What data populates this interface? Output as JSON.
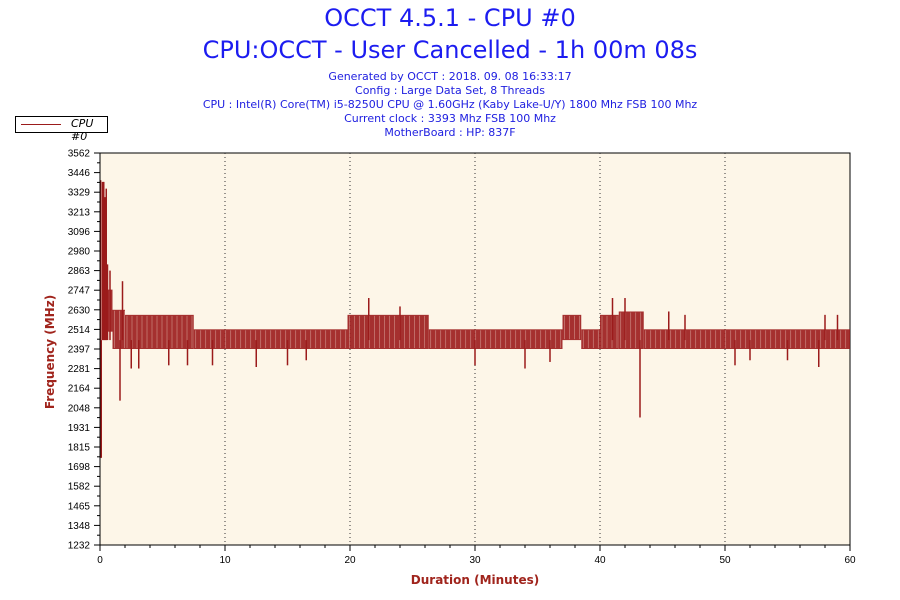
{
  "header": {
    "title": "OCCT 4.5.1 - CPU #0",
    "subtitle": "CPU:OCCT - User Cancelled - 1h 00m 08s",
    "info": [
      "Generated by OCCT : 2018. 09. 08 16:33:17",
      "Config : Large Data Set, 8 Threads",
      "CPU : Intel(R) Core(TM) i5-8250U CPU @ 1.60GHz (Kaby Lake-U/Y) 1800 Mhz FSB 100 Mhz",
      "Current clock : 3393 Mhz FSB 100 Mhz",
      "MotherBoard : HP: 837F"
    ]
  },
  "chart_data": {
    "type": "line",
    "title": "OCCT 4.5.1 - CPU #0",
    "xlabel": "Duration (Minutes)",
    "ylabel": "Frequency (MHz)",
    "xlim": [
      0,
      60
    ],
    "ylim": [
      1232,
      3562
    ],
    "x_ticks": [
      "0",
      "10",
      "20",
      "30",
      "40",
      "50",
      "60"
    ],
    "y_ticks": [
      "3562",
      "3446",
      "3329",
      "3213",
      "3096",
      "2980",
      "2863",
      "2747",
      "2630",
      "2514",
      "2397",
      "2281",
      "2164",
      "2048",
      "1931",
      "1815",
      "1698",
      "1582",
      "1465",
      "1348",
      "1232"
    ],
    "grid": "vertical dotted",
    "legend": {
      "position": "top-left",
      "entries": [
        "CPU #0"
      ]
    },
    "series": [
      {
        "name": "CPU #0",
        "color": "#9b1b1b",
        "bands": [
          [
            0.2,
            1.0,
            2500,
            2750
          ],
          [
            1.0,
            2.0,
            2397,
            2630
          ],
          [
            2.0,
            7.5,
            2397,
            2600
          ],
          [
            7.5,
            19.8,
            2397,
            2514
          ],
          [
            19.8,
            26.3,
            2397,
            2600
          ],
          [
            26.3,
            37.0,
            2397,
            2514
          ],
          [
            37.0,
            38.5,
            2450,
            2600
          ],
          [
            38.5,
            40.0,
            2397,
            2514
          ],
          [
            40.0,
            41.5,
            2397,
            2600
          ],
          [
            41.5,
            43.5,
            2397,
            2620
          ],
          [
            43.5,
            60.0,
            2397,
            2514
          ]
        ],
        "spikes": [
          [
            0.05,
            3400
          ],
          [
            0.1,
            1750
          ],
          [
            0.2,
            3390
          ],
          [
            0.3,
            3390
          ],
          [
            0.4,
            3300
          ],
          [
            0.5,
            3350
          ],
          [
            0.6,
            2900
          ],
          [
            0.8,
            2863
          ],
          [
            1.6,
            2090
          ],
          [
            1.8,
            2800
          ],
          [
            2.5,
            2281
          ],
          [
            3.1,
            2281
          ],
          [
            5.5,
            2300
          ],
          [
            7.0,
            2300
          ],
          [
            9.0,
            2300
          ],
          [
            12.5,
            2290
          ],
          [
            15.0,
            2300
          ],
          [
            16.5,
            2330
          ],
          [
            21.5,
            2700
          ],
          [
            24.0,
            2650
          ],
          [
            30.0,
            2300
          ],
          [
            34.0,
            2281
          ],
          [
            36.0,
            2320
          ],
          [
            41.0,
            2700
          ],
          [
            42.0,
            2700
          ],
          [
            43.2,
            1990
          ],
          [
            45.5,
            2620
          ],
          [
            46.8,
            2600
          ],
          [
            50.8,
            2300
          ],
          [
            52.0,
            2330
          ],
          [
            55.0,
            2330
          ],
          [
            57.5,
            2290
          ],
          [
            58.0,
            2600
          ],
          [
            59.0,
            2600
          ]
        ]
      }
    ]
  }
}
